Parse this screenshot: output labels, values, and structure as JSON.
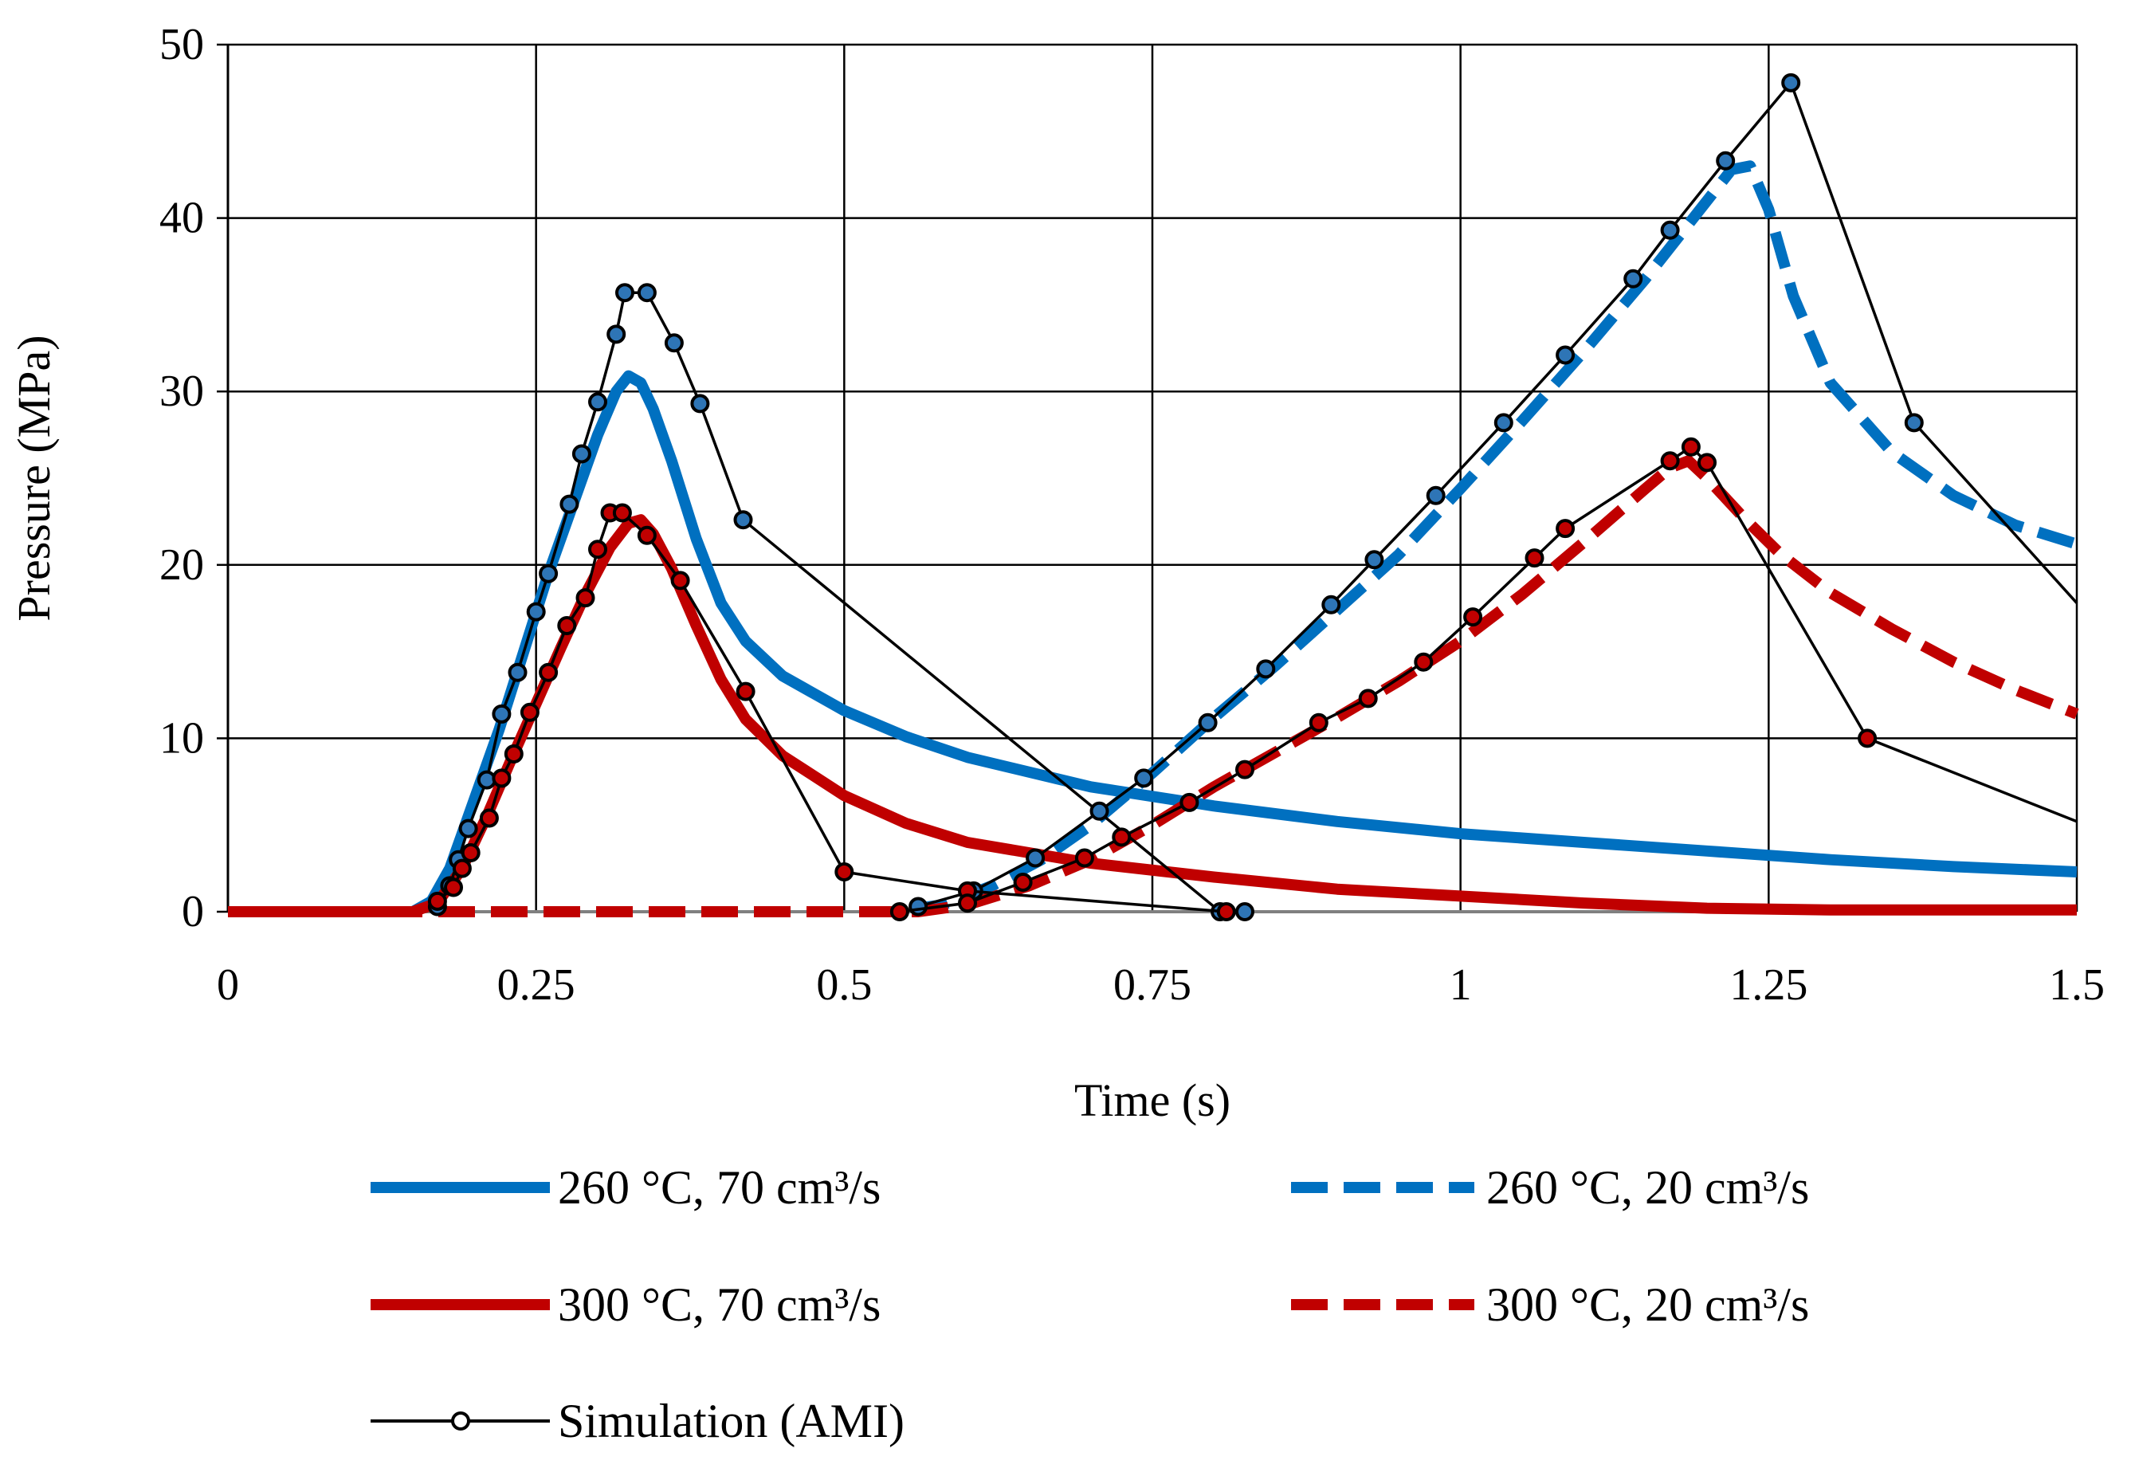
{
  "chart_data": {
    "type": "line",
    "title": "",
    "xlabel": "Time (s)",
    "ylabel": "Pressure (MPa)",
    "xlim": [
      0,
      1.5
    ],
    "ylim": [
      0,
      50
    ],
    "x_ticks": [
      0,
      0.25,
      0.5,
      0.75,
      1,
      1.25,
      1.5
    ],
    "x_tick_labels": [
      "0",
      "0.25",
      "0.5",
      "0.75",
      "1",
      "1.25",
      "1.5"
    ],
    "y_ticks": [
      0,
      10,
      20,
      30,
      40,
      50
    ],
    "y_tick_labels": [
      "0",
      "10",
      "20",
      "30",
      "40",
      "50"
    ],
    "grid": true,
    "legend_position": "bottom",
    "series": [
      {
        "name": "260 °C, 70 cm³/s",
        "color": "#0070C0",
        "style": "solid",
        "points": [
          [
            0,
            0
          ],
          [
            0.15,
            0
          ],
          [
            0.165,
            0.6
          ],
          [
            0.18,
            2.5
          ],
          [
            0.2,
            6.5
          ],
          [
            0.22,
            10.5
          ],
          [
            0.24,
            15
          ],
          [
            0.26,
            19.5
          ],
          [
            0.28,
            23.5
          ],
          [
            0.3,
            27.5
          ],
          [
            0.315,
            30
          ],
          [
            0.325,
            30.9
          ],
          [
            0.335,
            30.5
          ],
          [
            0.345,
            29
          ],
          [
            0.36,
            26
          ],
          [
            0.38,
            21.5
          ],
          [
            0.4,
            17.8
          ],
          [
            0.42,
            15.6
          ],
          [
            0.45,
            13.6
          ],
          [
            0.5,
            11.6
          ],
          [
            0.55,
            10.1
          ],
          [
            0.6,
            8.9
          ],
          [
            0.7,
            7.2
          ],
          [
            0.8,
            6.1
          ],
          [
            0.9,
            5.2
          ],
          [
            1.0,
            4.5
          ],
          [
            1.1,
            4.0
          ],
          [
            1.2,
            3.5
          ],
          [
            1.3,
            3.0
          ],
          [
            1.4,
            2.6
          ],
          [
            1.5,
            2.3
          ]
        ]
      },
      {
        "name": "260 °C, 20 cm³/s",
        "color": "#0070C0",
        "style": "dashed",
        "points": [
          [
            0,
            0
          ],
          [
            0.54,
            0
          ],
          [
            0.58,
            0.4
          ],
          [
            0.62,
            1.5
          ],
          [
            0.66,
            3.0
          ],
          [
            0.7,
            5.0
          ],
          [
            0.75,
            8.0
          ],
          [
            0.8,
            11.2
          ],
          [
            0.85,
            14.2
          ],
          [
            0.9,
            17.4
          ],
          [
            0.95,
            20.6
          ],
          [
            1.0,
            24.4
          ],
          [
            1.05,
            28.3
          ],
          [
            1.1,
            32.3
          ],
          [
            1.15,
            36.5
          ],
          [
            1.2,
            41.0
          ],
          [
            1.22,
            42.8
          ],
          [
            1.235,
            43.0
          ],
          [
            1.25,
            40.5
          ],
          [
            1.27,
            35.5
          ],
          [
            1.3,
            30.5
          ],
          [
            1.35,
            26.5
          ],
          [
            1.4,
            24.0
          ],
          [
            1.45,
            22.3
          ],
          [
            1.5,
            21.2
          ]
        ]
      },
      {
        "name": "300 °C, 70 cm³/s",
        "color": "#C00000",
        "style": "solid",
        "points": [
          [
            0,
            0
          ],
          [
            0.15,
            0
          ],
          [
            0.17,
            0.5
          ],
          [
            0.19,
            2.5
          ],
          [
            0.21,
            5.5
          ],
          [
            0.23,
            8.8
          ],
          [
            0.25,
            12.0
          ],
          [
            0.27,
            15.2
          ],
          [
            0.29,
            18.3
          ],
          [
            0.31,
            21.0
          ],
          [
            0.325,
            22.4
          ],
          [
            0.335,
            22.6
          ],
          [
            0.345,
            21.8
          ],
          [
            0.36,
            19.8
          ],
          [
            0.38,
            16.5
          ],
          [
            0.4,
            13.4
          ],
          [
            0.42,
            11.1
          ],
          [
            0.45,
            9.0
          ],
          [
            0.5,
            6.7
          ],
          [
            0.55,
            5.1
          ],
          [
            0.6,
            4.0
          ],
          [
            0.7,
            2.8
          ],
          [
            0.8,
            2.0
          ],
          [
            0.9,
            1.3
          ],
          [
            1.0,
            0.9
          ],
          [
            1.1,
            0.5
          ],
          [
            1.2,
            0.2
          ],
          [
            1.3,
            0.1
          ],
          [
            1.5,
            0.1
          ]
        ]
      },
      {
        "name": "300 °C, 20 cm³/s",
        "color": "#C00000",
        "style": "dashed",
        "points": [
          [
            0,
            0
          ],
          [
            0.56,
            0
          ],
          [
            0.6,
            0.4
          ],
          [
            0.65,
            1.5
          ],
          [
            0.7,
            3.0
          ],
          [
            0.75,
            5.0
          ],
          [
            0.8,
            7.2
          ],
          [
            0.85,
            9.2
          ],
          [
            0.9,
            11.2
          ],
          [
            0.95,
            13.3
          ],
          [
            1.0,
            15.6
          ],
          [
            1.05,
            18.3
          ],
          [
            1.1,
            21.3
          ],
          [
            1.15,
            24.4
          ],
          [
            1.17,
            25.6
          ],
          [
            1.185,
            26.0
          ],
          [
            1.2,
            25.0
          ],
          [
            1.23,
            22.7
          ],
          [
            1.26,
            20.6
          ],
          [
            1.3,
            18.4
          ],
          [
            1.35,
            16.3
          ],
          [
            1.4,
            14.4
          ],
          [
            1.45,
            12.8
          ],
          [
            1.5,
            11.4
          ]
        ]
      }
    ],
    "simulation": {
      "name": "Simulation (AMI)",
      "color": "#000000",
      "segments": [
        {
          "marker_fill": "#2E75B6",
          "points": [
            [
              0.17,
              0.3
            ],
            [
              0.18,
              1.5
            ],
            [
              0.187,
              3.0
            ],
            [
              0.195,
              4.8
            ],
            [
              0.21,
              7.6
            ],
            [
              0.222,
              11.4
            ],
            [
              0.235,
              13.8
            ],
            [
              0.25,
              17.3
            ],
            [
              0.26,
              19.5
            ],
            [
              0.277,
              23.5
            ],
            [
              0.287,
              26.4
            ],
            [
              0.3,
              29.4
            ],
            [
              0.315,
              33.3
            ],
            [
              0.322,
              35.7
            ],
            [
              0.34,
              35.7
            ],
            [
              0.362,
              32.8
            ],
            [
              0.383,
              29.3
            ],
            [
              0.418,
              22.6
            ],
            [
              0.805,
              0
            ],
            [
              0.825,
              0
            ]
          ]
        },
        {
          "marker_fill": "#2E75B6",
          "points": [
            [
              0.56,
              0.3
            ],
            [
              0.605,
              1.2
            ],
            [
              0.655,
              3.1
            ],
            [
              0.707,
              5.8
            ],
            [
              0.743,
              7.7
            ],
            [
              0.795,
              10.9
            ],
            [
              0.842,
              14.0
            ],
            [
              0.895,
              17.7
            ],
            [
              0.93,
              20.3
            ],
            [
              0.98,
              24.0
            ],
            [
              1.035,
              28.2
            ],
            [
              1.085,
              32.1
            ],
            [
              1.14,
              36.5
            ],
            [
              1.17,
              39.3
            ],
            [
              1.215,
              43.3
            ],
            [
              1.268,
              47.8
            ],
            [
              1.368,
              28.2
            ],
            [
              1.5,
              17.8
            ]
          ]
        },
        {
          "marker_fill": "#C00000",
          "points": [
            [
              0.17,
              0.6
            ],
            [
              0.183,
              1.4
            ],
            [
              0.19,
              2.5
            ],
            [
              0.197,
              3.4
            ],
            [
              0.212,
              5.4
            ],
            [
              0.222,
              7.7
            ],
            [
              0.232,
              9.1
            ],
            [
              0.245,
              11.5
            ],
            [
              0.26,
              13.8
            ],
            [
              0.275,
              16.5
            ],
            [
              0.29,
              18.1
            ],
            [
              0.3,
              20.9
            ],
            [
              0.31,
              23.0
            ],
            [
              0.32,
              23.0
            ],
            [
              0.34,
              21.7
            ],
            [
              0.367,
              19.1
            ],
            [
              0.42,
              12.7
            ],
            [
              0.5,
              2.3
            ],
            [
              0.6,
              1.2
            ],
            [
              0.81,
              0
            ]
          ]
        },
        {
          "marker_fill": "#C00000",
          "points": [
            [
              0.545,
              0
            ],
            [
              0.6,
              0.5
            ],
            [
              0.645,
              1.7
            ],
            [
              0.695,
              3.1
            ],
            [
              0.725,
              4.3
            ],
            [
              0.78,
              6.3
            ],
            [
              0.825,
              8.2
            ],
            [
              0.885,
              10.9
            ],
            [
              0.925,
              12.3
            ],
            [
              0.97,
              14.4
            ],
            [
              1.01,
              17.0
            ],
            [
              1.06,
              20.4
            ],
            [
              1.085,
              22.1
            ],
            [
              1.17,
              26.0
            ],
            [
              1.187,
              26.8
            ],
            [
              1.2,
              25.9
            ],
            [
              1.33,
              10.0
            ],
            [
              1.5,
              5.2
            ]
          ]
        }
      ]
    }
  }
}
